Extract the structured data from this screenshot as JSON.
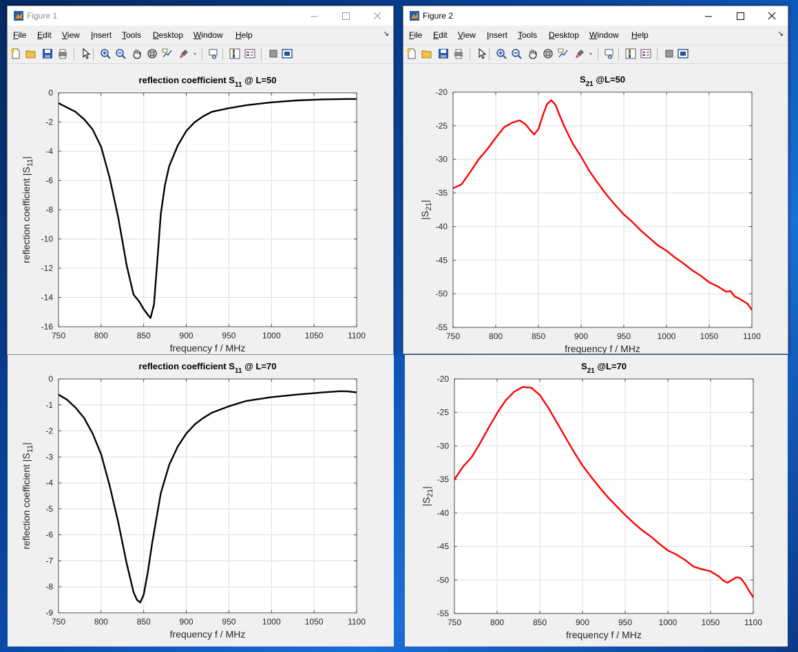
{
  "windows": [
    {
      "title": "Figure 1",
      "active": false
    },
    {
      "title": "Figure 2",
      "active": true
    }
  ],
  "menu": [
    "File",
    "Edit",
    "View",
    "Insert",
    "Tools",
    "Desktop",
    "Window",
    "Help"
  ],
  "menu_mnemonics": [
    "F",
    "E",
    "V",
    "I",
    "T",
    "D",
    "W",
    "H"
  ],
  "toolbar_icons": [
    "new-figure-icon",
    "open-file-icon",
    "save-icon",
    "print-icon",
    "select-arrow-icon",
    "zoom-in-icon",
    "zoom-out-icon",
    "pan-hand-icon",
    "rotate-3d-icon",
    "data-cursor-icon",
    "brush-icon",
    "brush-menu-chevron-icon",
    "link-plot-icon",
    "colorbar-icon",
    "legend-icon",
    "hide-plot-tools-icon",
    "show-plot-tools-icon"
  ],
  "colors": {
    "s11_line": "#000000",
    "s21_line": "#ff0000",
    "grid": "#dcdcdc",
    "axes_bg": "#ffffff"
  },
  "chart_data": [
    {
      "type": "line",
      "title_prefix": "reflection coefficient S",
      "title_sub": "11",
      "title_suffix": " @ L=50",
      "xlabel": "frequency f / MHz",
      "ylabel_prefix": "reflection coefficient |S",
      "ylabel_sub": "11",
      "ylabel_suffix": "|",
      "xlim": [
        750,
        1100
      ],
      "ylim": [
        -16,
        0
      ],
      "xticks": [
        750,
        800,
        850,
        900,
        950,
        1000,
        1050,
        1100
      ],
      "yticks": [
        -16,
        -14,
        -12,
        -10,
        -8,
        -6,
        -4,
        -2,
        0
      ],
      "grid": true,
      "x": [
        750,
        760,
        770,
        780,
        790,
        800,
        810,
        820,
        830,
        838,
        845,
        850,
        855,
        858,
        862,
        866,
        870,
        875,
        880,
        890,
        900,
        910,
        920,
        930,
        950,
        970,
        1000,
        1030,
        1060,
        1090,
        1100
      ],
      "y": [
        -0.7,
        -1.0,
        -1.3,
        -1.8,
        -2.5,
        -3.7,
        -5.8,
        -8.5,
        -11.8,
        -13.8,
        -14.3,
        -14.8,
        -15.2,
        -15.4,
        -14.5,
        -11.5,
        -8.3,
        -6.3,
        -5.0,
        -3.6,
        -2.6,
        -2.0,
        -1.6,
        -1.3,
        -1.05,
        -0.85,
        -0.65,
        -0.52,
        -0.45,
        -0.42,
        -0.42
      ]
    },
    {
      "type": "line",
      "title_prefix": "S",
      "title_sub": "21",
      "title_suffix": "   @L=50",
      "xlabel": "frequency f / MHz",
      "ylabel_prefix": "|S",
      "ylabel_sub": "21",
      "ylabel_suffix": "|",
      "xlim": [
        750,
        1100
      ],
      "ylim": [
        -55,
        -20
      ],
      "xticks": [
        750,
        800,
        850,
        900,
        950,
        1000,
        1050,
        1100
      ],
      "yticks": [
        -55,
        -50,
        -45,
        -40,
        -35,
        -30,
        -25,
        -20
      ],
      "grid": true,
      "x": [
        750,
        760,
        770,
        780,
        790,
        800,
        810,
        820,
        828,
        835,
        840,
        845,
        850,
        855,
        860,
        865,
        870,
        875,
        880,
        890,
        900,
        910,
        920,
        930,
        940,
        950,
        960,
        970,
        980,
        990,
        1000,
        1010,
        1020,
        1030,
        1040,
        1050,
        1060,
        1065,
        1070,
        1075,
        1080,
        1085,
        1090,
        1095,
        1100
      ],
      "y": [
        -34.3,
        -33.7,
        -31.9,
        -30.0,
        -28.5,
        -26.8,
        -25.2,
        -24.5,
        -24.2,
        -24.8,
        -25.6,
        -26.3,
        -25.5,
        -23.5,
        -21.8,
        -21.2,
        -21.9,
        -23.5,
        -25.0,
        -27.6,
        -29.6,
        -31.8,
        -33.6,
        -35.3,
        -36.8,
        -38.2,
        -39.3,
        -40.6,
        -41.7,
        -42.8,
        -43.6,
        -44.6,
        -45.5,
        -46.5,
        -47.3,
        -48.3,
        -48.9,
        -49.3,
        -49.7,
        -49.6,
        -50.4,
        -50.7,
        -51.1,
        -51.5,
        -52.4
      ]
    },
    {
      "type": "line",
      "title_prefix": "reflection coefficient S",
      "title_sub": "11",
      "title_suffix": " @ L=70",
      "xlabel": "frequency f / MHz",
      "ylabel_prefix": "reflection coefficient |S",
      "ylabel_sub": "11",
      "ylabel_suffix": "|",
      "xlim": [
        750,
        1100
      ],
      "ylim": [
        -9,
        0
      ],
      "xticks": [
        750,
        800,
        850,
        900,
        950,
        1000,
        1050,
        1100
      ],
      "yticks": [
        -9,
        -8,
        -7,
        -6,
        -5,
        -4,
        -3,
        -2,
        -1,
        0
      ],
      "grid": true,
      "x": [
        750,
        760,
        770,
        780,
        790,
        800,
        810,
        820,
        830,
        838,
        842,
        846,
        850,
        855,
        860,
        870,
        880,
        890,
        900,
        910,
        920,
        930,
        950,
        970,
        1000,
        1030,
        1060,
        1080,
        1090,
        1100
      ],
      "y": [
        -0.6,
        -0.8,
        -1.1,
        -1.5,
        -2.1,
        -2.9,
        -4.1,
        -5.5,
        -7.1,
        -8.2,
        -8.5,
        -8.6,
        -8.3,
        -7.4,
        -6.3,
        -4.4,
        -3.3,
        -2.6,
        -2.1,
        -1.75,
        -1.5,
        -1.3,
        -1.05,
        -0.85,
        -0.7,
        -0.6,
        -0.52,
        -0.47,
        -0.48,
        -0.52
      ]
    },
    {
      "type": "line",
      "title_prefix": "S",
      "title_sub": "21",
      "title_suffix": "   @L=70",
      "xlabel": "frequency f / MHz",
      "ylabel_prefix": "|S",
      "ylabel_sub": "21",
      "ylabel_suffix": "|",
      "xlim": [
        750,
        1100
      ],
      "ylim": [
        -55,
        -20
      ],
      "xticks": [
        750,
        800,
        850,
        900,
        950,
        1000,
        1050,
        1100
      ],
      "yticks": [
        -55,
        -50,
        -45,
        -40,
        -35,
        -30,
        -25,
        -20
      ],
      "grid": true,
      "x": [
        750,
        760,
        770,
        780,
        790,
        800,
        810,
        820,
        830,
        840,
        850,
        860,
        870,
        880,
        890,
        900,
        910,
        920,
        930,
        940,
        950,
        960,
        970,
        980,
        990,
        1000,
        1010,
        1020,
        1030,
        1040,
        1050,
        1060,
        1065,
        1070,
        1075,
        1080,
        1085,
        1090,
        1095,
        1100
      ],
      "y": [
        -35.0,
        -33.1,
        -31.7,
        -29.6,
        -27.3,
        -25.1,
        -23.2,
        -21.9,
        -21.2,
        -21.3,
        -22.4,
        -24.3,
        -26.5,
        -28.7,
        -30.9,
        -32.9,
        -34.6,
        -36.2,
        -37.7,
        -39.0,
        -40.3,
        -41.5,
        -42.6,
        -43.5,
        -44.6,
        -45.6,
        -46.2,
        -47.0,
        -48.0,
        -48.4,
        -48.7,
        -49.5,
        -50.1,
        -50.4,
        -50.0,
        -49.6,
        -49.7,
        -50.5,
        -51.6,
        -52.6
      ]
    }
  ]
}
